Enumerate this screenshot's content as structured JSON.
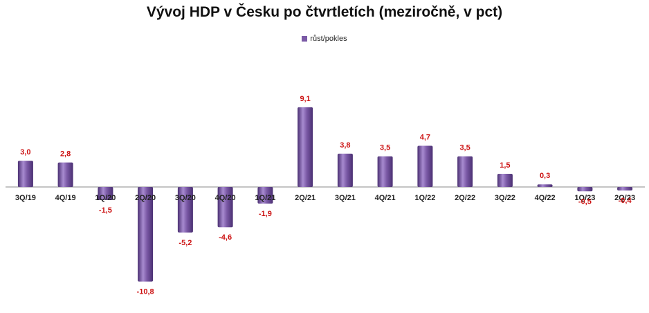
{
  "chart_data": {
    "type": "bar",
    "title": "Vývoj HDP v Česku po čtvrtletích (meziročně, v pct)",
    "legend": {
      "position": "top",
      "entries": [
        "růst/pokles"
      ]
    },
    "categories": [
      "3Q/19",
      "4Q/19",
      "1Q/20",
      "2Q/20",
      "3Q/20",
      "4Q/20",
      "1Q/21",
      "2Q/21",
      "3Q/21",
      "4Q/21",
      "1Q/22",
      "2Q/22",
      "3Q/22",
      "4Q/22",
      "1Q/23",
      "2Q/23"
    ],
    "series": [
      {
        "name": "růst/pokles",
        "values": [
          3.0,
          2.8,
          -1.5,
          -10.8,
          -5.2,
          -4.6,
          -1.9,
          9.1,
          3.8,
          3.5,
          4.7,
          3.5,
          1.5,
          0.3,
          -0.5,
          -0.4
        ],
        "labels": [
          "3,0",
          "2,8",
          "-1,5",
          "-10,8",
          "-5,2",
          "-4,6",
          "-1,9",
          "9,1",
          "3,8",
          "3,5",
          "4,7",
          "3,5",
          "1,5",
          "0,3",
          "-0,5",
          "-0,4"
        ]
      }
    ],
    "xlabel": "",
    "ylabel": "",
    "grid": false,
    "colors": {
      "bar": "#7b5aa6",
      "bar_dark": "#4a2f72",
      "bar_light": "#a88bd0",
      "data_label": "#cc1111",
      "axis": "#888888"
    }
  }
}
